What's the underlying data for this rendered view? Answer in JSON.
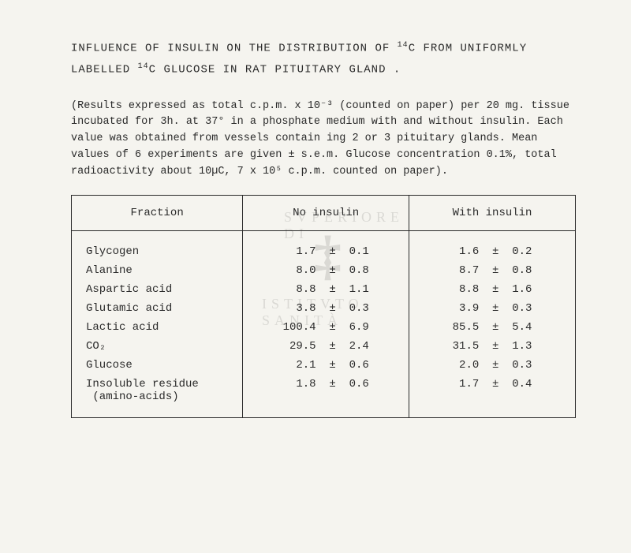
{
  "title_line1_pre": "INFLUENCE OF INSULIN ON THE DISTRIBUTION OF ",
  "title_sup1": "14",
  "title_line1_post": "C FROM UNIFORMLY",
  "title_line2_pre": "LABELLED ",
  "title_sup2": "14",
  "title_line2_post": "C GLUCOSE  IN  RAT  PITUITARY  GLAND .",
  "caption": "(Results expressed as total c.p.m. x 10⁻³ (counted on paper) per 20 mg. tissue incubated for 3h. at 37° in a phosphate medium with and without insulin. Each value was obtained from vessels contain ing 2 or 3 pituitary glands. Mean values of 6 experiments are given ± s.e.m. Glucose concentration 0.1%, total radioactivity about 10µC, 7 x 10⁵ c.p.m. counted on paper).",
  "headers": {
    "c0": "Fraction",
    "c1": "No insulin",
    "c2": "With insulin"
  },
  "rows": [
    {
      "f": "Glycogen",
      "a": "  1.7  ±  0.1",
      "b": " 1.6  ±  0.2"
    },
    {
      "f": "Alanine",
      "a": "  8.0  ±  0.8",
      "b": " 8.7  ±  0.8"
    },
    {
      "f": "Aspartic acid",
      "a": "  8.8  ±  1.1",
      "b": " 8.8  ±  1.6"
    },
    {
      "f": "Glutamic acid",
      "a": "  3.8  ±  0.3",
      "b": " 3.9  ±  0.3"
    },
    {
      "f": "Lactic acid",
      "a": "100.4  ±  6.9",
      "b": "85.5  ±  5.4"
    },
    {
      "f": "CO₂",
      "a": " 29.5  ±  2.4",
      "b": "31.5  ±  1.3"
    },
    {
      "f": "Glucose",
      "a": "  2.1  ±  0.6",
      "b": " 2.0  ±  0.3"
    },
    {
      "f": "Insoluble residue\n (amino-acids)",
      "a": "  1.8  ±  0.6",
      "b": " 1.7  ±  0.4"
    }
  ],
  "watermark": {
    "top": "SVPERIORE DI",
    "bottom": "ISTITVTO   SANITÀ",
    "glyph": "‡"
  }
}
